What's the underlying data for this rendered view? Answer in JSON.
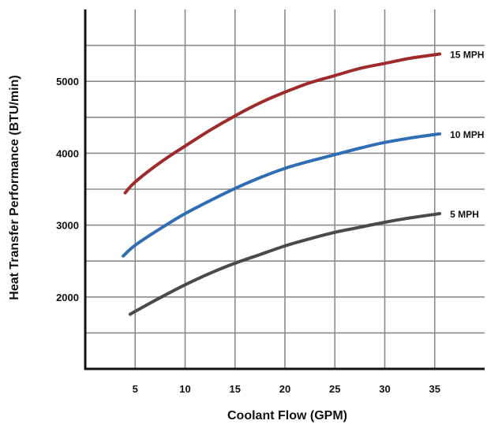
{
  "chart_data": {
    "type": "line",
    "title": "",
    "xlabel": "Coolant Flow (GPM)",
    "ylabel": "Heat Transfer Performance (BTU/min)",
    "x_ticks": [
      5,
      10,
      15,
      20,
      25,
      30,
      35
    ],
    "y_ticks": [
      2000,
      3000,
      4000,
      5000
    ],
    "xlim": [
      0,
      40
    ],
    "ylim": [
      1000,
      6000
    ],
    "grid": true,
    "legend": "none (series labeled at right end of lines)",
    "series": [
      {
        "name": "15 MPH",
        "color": "#9e2a2b",
        "x": [
          4,
          5,
          7.5,
          10,
          12.5,
          15,
          17.5,
          20,
          22.5,
          25,
          27.5,
          30,
          32.5,
          35.5
        ],
        "y": [
          3450,
          3600,
          3870,
          4100,
          4320,
          4520,
          4700,
          4850,
          4980,
          5080,
          5180,
          5250,
          5320,
          5380
        ]
      },
      {
        "name": "10 MPH",
        "color": "#2f6eb4",
        "x": [
          3.8,
          5,
          7.5,
          10,
          12.5,
          15,
          17.5,
          20,
          22.5,
          25,
          27.5,
          30,
          32.5,
          35.5
        ],
        "y": [
          2570,
          2720,
          2950,
          3160,
          3340,
          3510,
          3660,
          3790,
          3890,
          3980,
          4070,
          4150,
          4210,
          4270
        ]
      },
      {
        "name": "5 MPH",
        "color": "#4a4a4a",
        "x": [
          4.5,
          5,
          7.5,
          10,
          12.5,
          15,
          17.5,
          20,
          22.5,
          25,
          27.5,
          30,
          32.5,
          35.5
        ],
        "y": [
          1760,
          1800,
          1990,
          2170,
          2330,
          2470,
          2590,
          2710,
          2810,
          2900,
          2970,
          3040,
          3100,
          3160
        ]
      }
    ]
  }
}
